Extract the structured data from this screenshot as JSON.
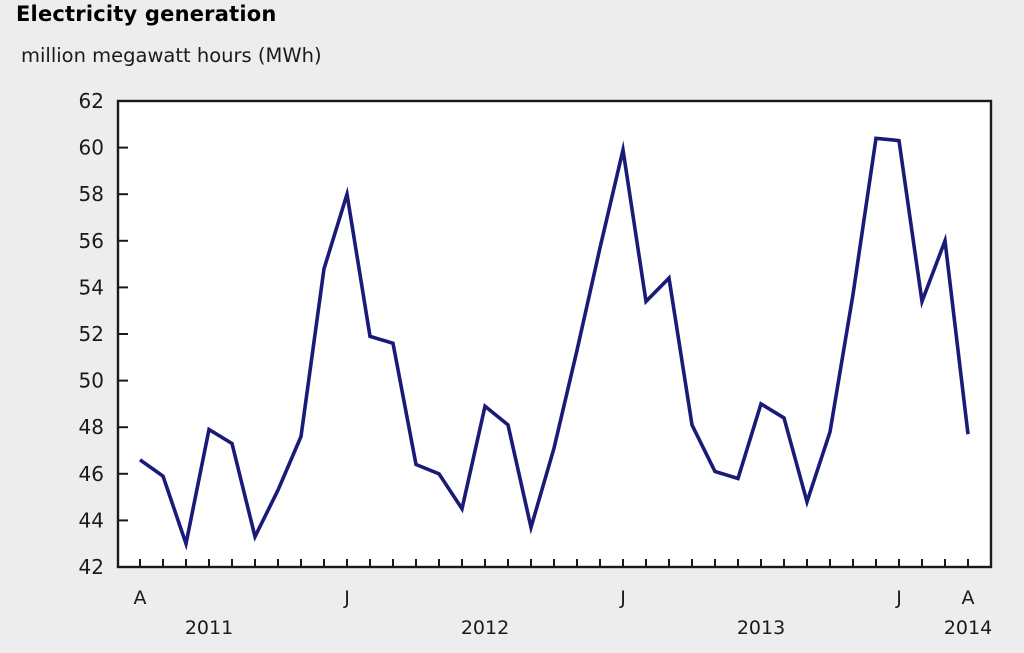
{
  "header": {
    "title": "Electricity generation",
    "subtitle": "million megawatt hours (MWh)"
  },
  "chart_data": {
    "type": "line",
    "title": "Electricity generation",
    "ylabel": "million megawatt hours (MWh)",
    "xlabel": "",
    "ylim": [
      42,
      62
    ],
    "yticks": [
      42,
      44,
      46,
      48,
      50,
      52,
      54,
      56,
      58,
      60,
      62
    ],
    "grid": false,
    "legend_position": "none",
    "background_color": "#ededed",
    "plot_background_color": "#ffffff",
    "axis_color": "#1a1a1a",
    "x": [
      "Apr 2011",
      "May 2011",
      "Jun 2011",
      "Jul 2011",
      "Aug 2011",
      "Sep 2011",
      "Oct 2011",
      "Nov 2011",
      "Dec 2011",
      "Jan 2012",
      "Feb 2012",
      "Mar 2012",
      "Apr 2012",
      "May 2012",
      "Jun 2012",
      "Jul 2012",
      "Aug 2012",
      "Sep 2012",
      "Oct 2012",
      "Nov 2012",
      "Dec 2012",
      "Jan 2013",
      "Feb 2013",
      "Mar 2013",
      "Apr 2013",
      "May 2013",
      "Jun 2013",
      "Jul 2013",
      "Aug 2013",
      "Sep 2013",
      "Oct 2013",
      "Nov 2013",
      "Dec 2013",
      "Jan 2014",
      "Feb 2014",
      "Mar 2014",
      "Apr 2014"
    ],
    "series": [
      {
        "name": "Electricity generation (million MWh)",
        "color": "#1a1a78",
        "values": [
          46.6,
          45.9,
          43.0,
          47.9,
          47.3,
          43.3,
          45.3,
          47.6,
          54.8,
          58.0,
          51.9,
          51.6,
          46.4,
          46.0,
          44.5,
          48.9,
          48.1,
          43.7,
          47.1,
          51.3,
          55.7,
          59.9,
          53.4,
          54.4,
          48.1,
          46.1,
          45.8,
          49.0,
          48.4,
          44.8,
          47.8,
          53.7,
          60.4,
          60.3,
          53.4,
          56.0,
          47.7
        ]
      }
    ],
    "xticklabels": [
      {
        "index": 0,
        "label": "A"
      },
      {
        "index": 9,
        "label": "J"
      },
      {
        "index": 21,
        "label": "J"
      },
      {
        "index": 33,
        "label": "J"
      },
      {
        "index": 36,
        "label": "A"
      }
    ],
    "year_labels": [
      {
        "index": 3,
        "label": "2011"
      },
      {
        "index": 15,
        "label": "2012"
      },
      {
        "index": 27,
        "label": "2013"
      },
      {
        "index": 36,
        "label": "2014"
      }
    ]
  }
}
